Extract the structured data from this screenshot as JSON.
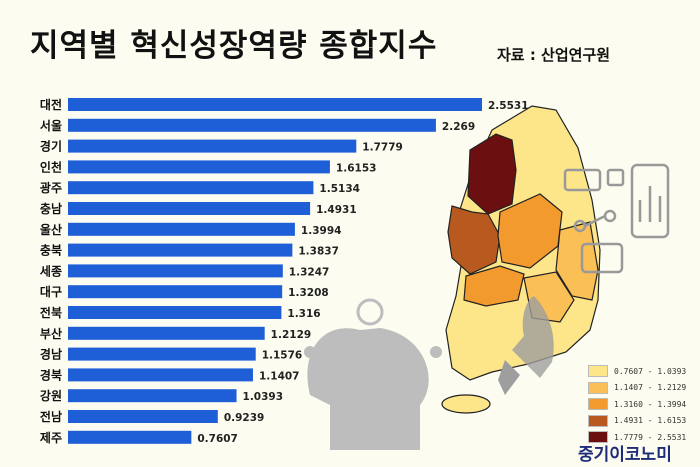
{
  "header": {
    "title": "지역별 혁신성장역량 종합지수",
    "source": "자료 : 산업연구원"
  },
  "legend": {
    "items": [
      {
        "label": "0.7607 - 1.0393",
        "color": "#fde68a"
      },
      {
        "label": "1.1407 - 1.2129",
        "color": "#fbc055"
      },
      {
        "label": "1.3160 - 1.3994",
        "color": "#f29a2e"
      },
      {
        "label": "1.4931 - 1.6153",
        "color": "#b85a1f"
      },
      {
        "label": "1.7779 - 2.5531",
        "color": "#6b0f10"
      }
    ]
  },
  "brand": {
    "text": "중기이코노미"
  },
  "chart_data": {
    "type": "bar",
    "orientation": "horizontal",
    "title": "지역별 혁신성장역량 종합지수",
    "categories": [
      "대전",
      "서울",
      "경기",
      "인천",
      "광주",
      "충남",
      "울산",
      "충북",
      "세종",
      "대구",
      "전북",
      "부산",
      "경남",
      "경북",
      "강원",
      "전남",
      "제주"
    ],
    "values": [
      2.5531,
      2.269,
      1.7779,
      1.6153,
      1.5134,
      1.4931,
      1.3994,
      1.3837,
      1.3247,
      1.3208,
      1.316,
      1.2129,
      1.1576,
      1.1407,
      1.0393,
      0.9239,
      0.7607
    ],
    "value_labels": [
      "2.5531",
      "2.269",
      "1.7779",
      "1.6153",
      "1.5134",
      "1.4931",
      "1.3994",
      "1.3837",
      "1.3247",
      "1.3208",
      "1.316",
      "1.2129",
      "1.1576",
      "1.1407",
      "1.0393",
      "0.9239",
      "0.7607"
    ],
    "bar_color": "#1e5fd8",
    "xlim": [
      0,
      2.5531
    ]
  }
}
